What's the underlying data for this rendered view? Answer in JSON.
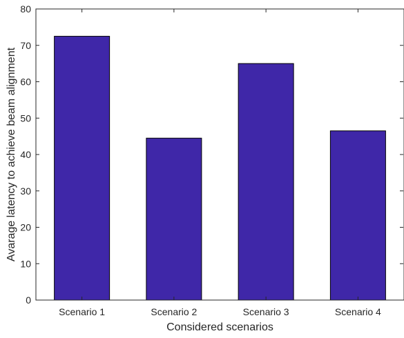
{
  "chart_data": {
    "type": "bar",
    "categories": [
      "Scenario 1",
      "Scenario 2",
      "Scenario 3",
      "Scenario 4"
    ],
    "values": [
      72.5,
      44.5,
      65.0,
      46.5
    ],
    "xlabel": "Considered scenarios",
    "ylabel": "Avarage latency to achieve beam alignment",
    "ylim": [
      0,
      80
    ],
    "yticks": [
      0,
      10,
      20,
      30,
      40,
      50,
      60,
      70,
      80
    ],
    "grid": false,
    "legend": "none",
    "colors": {
      "bar_fill": "#3f27a8",
      "bar_edge": "#000000",
      "axis": "#262626"
    }
  }
}
